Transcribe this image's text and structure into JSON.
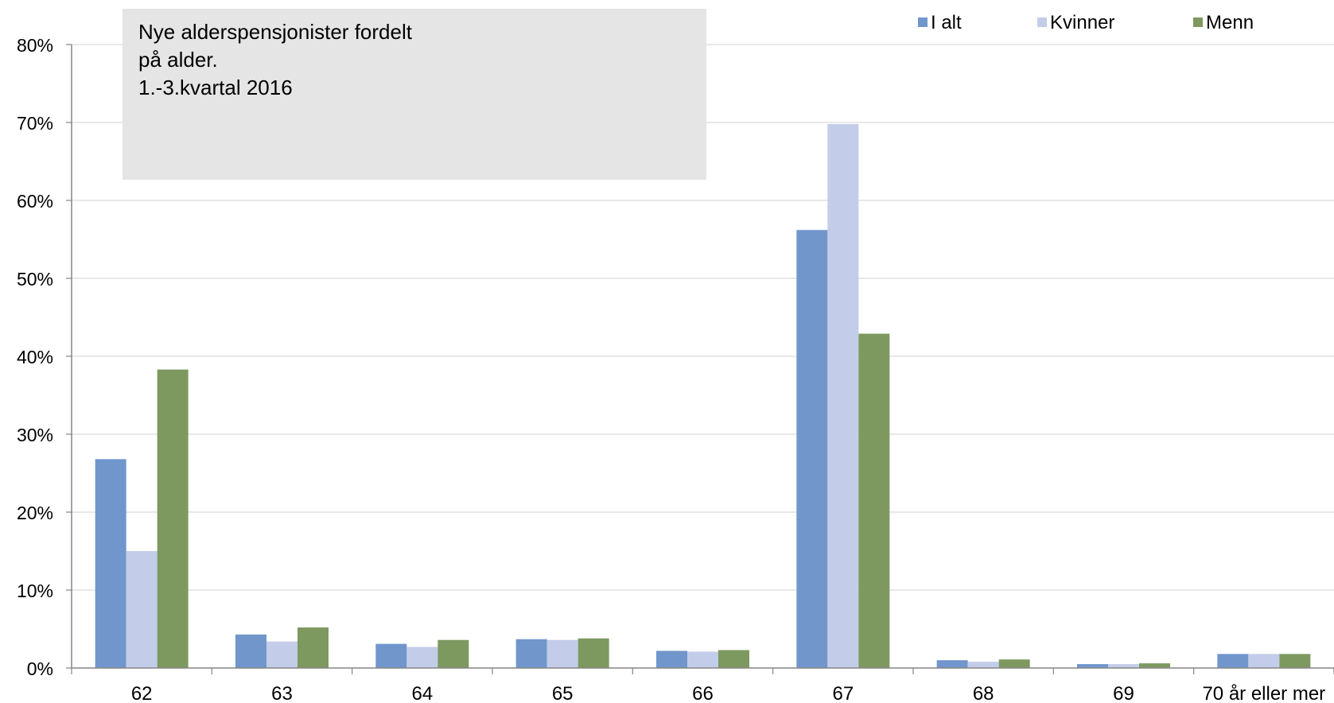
{
  "chart_data": {
    "type": "bar",
    "title_lines": [
      "Nye alderspensjonister fordelt",
      "på alder.",
      "1.-3.kvartal 2016"
    ],
    "xlabel": "",
    "ylabel": "",
    "categories": [
      "62",
      "63",
      "64",
      "65",
      "66",
      "67",
      "68",
      "69",
      "70 år eller mer"
    ],
    "ylim": [
      0,
      80
    ],
    "yticks": [
      0,
      10,
      20,
      30,
      40,
      50,
      60,
      70,
      80
    ],
    "ytick_labels": [
      "0%",
      "10%",
      "20%",
      "30%",
      "40%",
      "50%",
      "60%",
      "70%",
      "80%"
    ],
    "grid": true,
    "legend_position": "top-right",
    "series": [
      {
        "name": "I alt",
        "color": "#7096CC",
        "values": [
          26.8,
          4.3,
          3.1,
          3.7,
          2.2,
          56.2,
          1.0,
          0.5,
          1.8
        ]
      },
      {
        "name": "Kvinner",
        "color": "#C3CCE8",
        "values": [
          15.0,
          3.4,
          2.7,
          3.6,
          2.1,
          69.8,
          0.8,
          0.5,
          1.8
        ]
      },
      {
        "name": "Menn",
        "color": "#7D9960",
        "values": [
          38.3,
          5.2,
          3.6,
          3.8,
          2.3,
          42.9,
          1.1,
          0.6,
          1.8
        ]
      }
    ]
  }
}
